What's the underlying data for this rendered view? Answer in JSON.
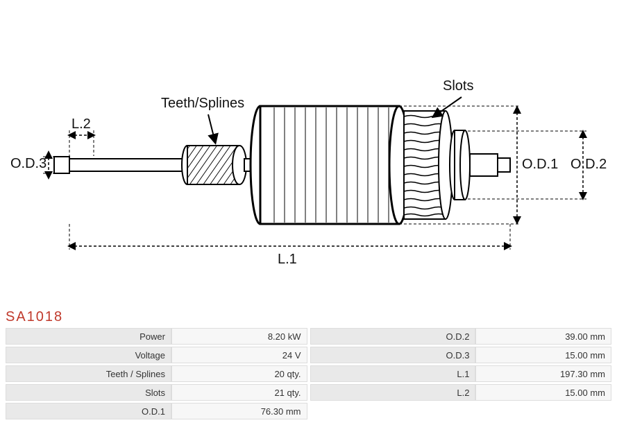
{
  "part_code": "SA1018",
  "diagram": {
    "labels": {
      "slots": "Slots",
      "teeth": "Teeth/Splines",
      "L2": "L.2",
      "OD3": "O.D.3",
      "L1": "L.1",
      "OD1": "O.D.1",
      "OD2": "O.D.2"
    },
    "stroke": "#000000",
    "fill_light": "#ffffff",
    "hatch": "#555555"
  },
  "specs_left": [
    {
      "label": "Power",
      "value": "8.20 kW"
    },
    {
      "label": "Voltage",
      "value": "24 V"
    },
    {
      "label": "Teeth / Splines",
      "value": "20 qty."
    },
    {
      "label": "Slots",
      "value": "21 qty."
    },
    {
      "label": "O.D.1",
      "value": "76.30 mm"
    }
  ],
  "specs_right": [
    {
      "label": "O.D.2",
      "value": "39.00 mm"
    },
    {
      "label": "O.D.3",
      "value": "15.00 mm"
    },
    {
      "label": "L.1",
      "value": "197.30 mm"
    },
    {
      "label": "L.2",
      "value": "15.00 mm"
    },
    {
      "label": "",
      "value": ""
    }
  ]
}
